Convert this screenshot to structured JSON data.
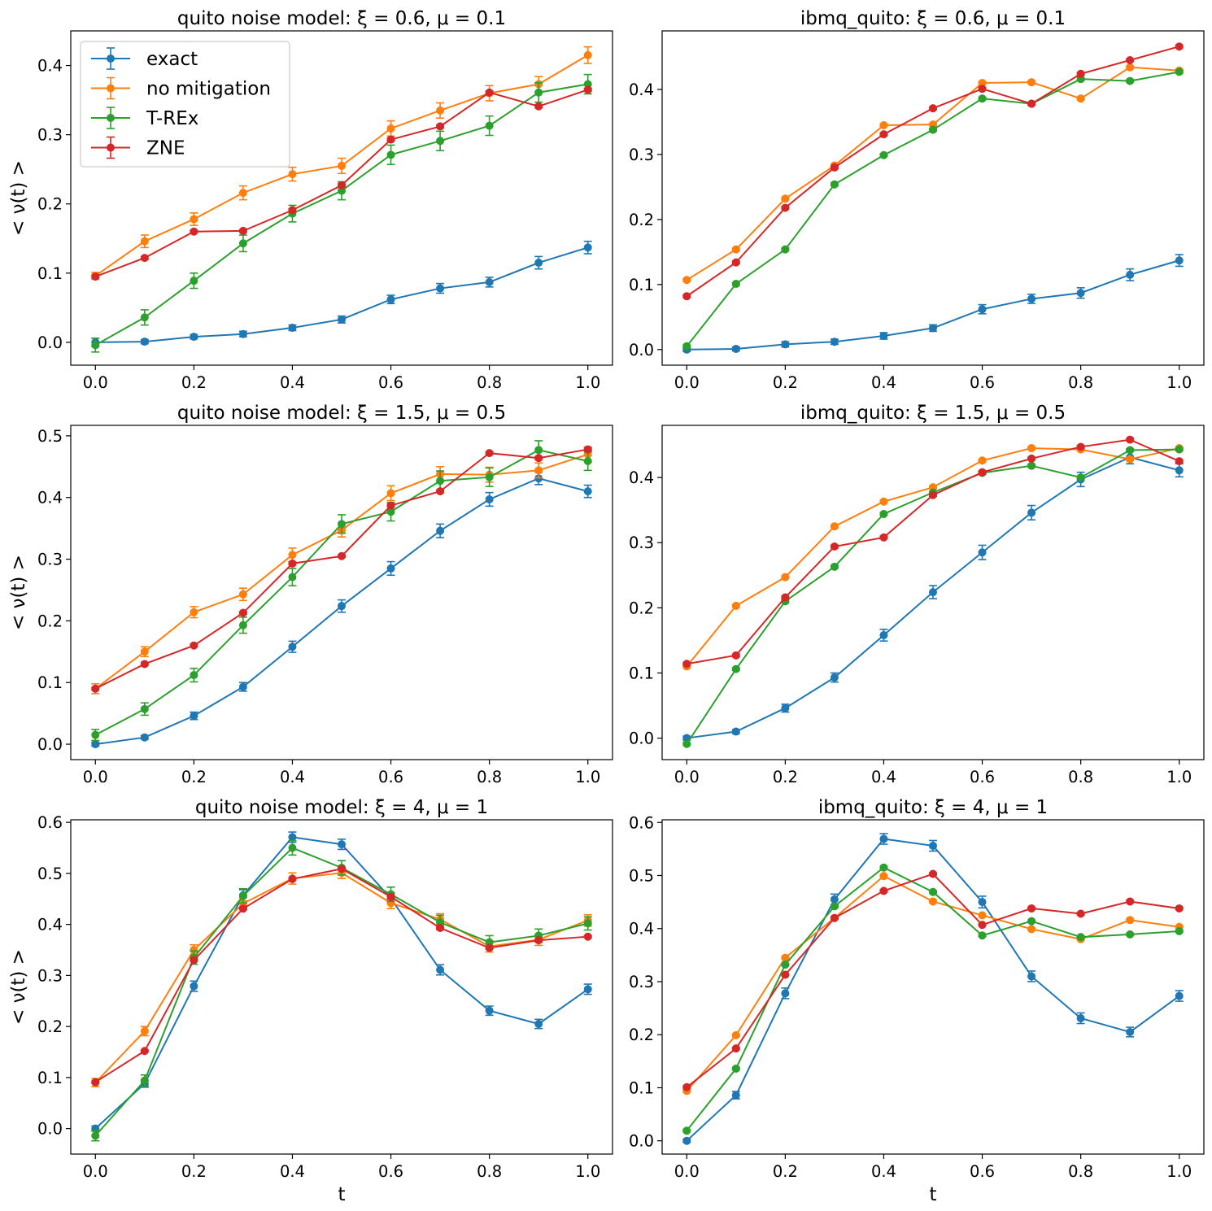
{
  "colors": {
    "exact": "#1f77b4",
    "no mitigation": "#ff7f0e",
    "T-REx": "#2ca02c",
    "ZNE": "#d62728"
  },
  "legend": [
    "exact",
    "no mitigation",
    "T-REx",
    "ZNE"
  ],
  "chart_data": [
    {
      "type": "line",
      "title": "quito noise model: ξ = 0.6, μ = 0.1",
      "xlabel": "",
      "ylabel": "< ν(t) >",
      "xlim": [
        -0.05,
        1.05
      ],
      "ylim": [
        -0.033,
        0.45
      ],
      "xticks": [
        "0.0",
        "0.2",
        "0.4",
        "0.6",
        "0.8",
        "1.0"
      ],
      "yticks": [
        "0.0",
        "0.1",
        "0.2",
        "0.3",
        "0.4"
      ],
      "x": [
        0.0,
        0.1,
        0.2,
        0.3,
        0.4,
        0.5,
        0.6,
        0.7,
        0.8,
        0.9,
        1.0
      ],
      "series": [
        {
          "name": "exact",
          "values": [
            0.0,
            0.001,
            0.008,
            0.012,
            0.021,
            0.033,
            0.062,
            0.078,
            0.087,
            0.115,
            0.137
          ],
          "errors": [
            0.006,
            0.003,
            0.003,
            0.004,
            0.004,
            0.005,
            0.006,
            0.007,
            0.007,
            0.009,
            0.009
          ]
        },
        {
          "name": "no mitigation",
          "values": [
            0.096,
            0.146,
            0.178,
            0.216,
            0.243,
            0.255,
            0.309,
            0.335,
            0.36,
            0.373,
            0.415
          ],
          "errors": [
            0.005,
            0.009,
            0.009,
            0.01,
            0.01,
            0.011,
            0.011,
            0.011,
            0.011,
            0.011,
            0.012
          ]
        },
        {
          "name": "T-REx",
          "values": [
            -0.004,
            0.036,
            0.089,
            0.143,
            0.186,
            0.219,
            0.271,
            0.291,
            0.313,
            0.361,
            0.373
          ],
          "errors": [
            0.01,
            0.011,
            0.011,
            0.012,
            0.012,
            0.013,
            0.014,
            0.014,
            0.014,
            0.014,
            0.014
          ]
        },
        {
          "name": "ZNE",
          "values": [
            0.095,
            0.122,
            0.16,
            0.161,
            0.191,
            0.227,
            0.293,
            0.312,
            0.361,
            0.341,
            0.365
          ],
          "errors": [
            0.002,
            0.002,
            0.002,
            0.002,
            0.002,
            0.002,
            0.002,
            0.002,
            0.002,
            0.002,
            0.002
          ]
        }
      ]
    },
    {
      "type": "line",
      "title": "ibmq_quito: ξ = 0.6, μ = 0.1",
      "xlabel": "",
      "ylabel": "",
      "xlim": [
        -0.05,
        1.05
      ],
      "ylim": [
        -0.024,
        0.49
      ],
      "xticks": [
        "0.0",
        "0.2",
        "0.4",
        "0.6",
        "0.8",
        "1.0"
      ],
      "yticks": [
        "0.0",
        "0.1",
        "0.2",
        "0.3",
        "0.4"
      ],
      "x": [
        0.0,
        0.1,
        0.2,
        0.3,
        0.4,
        0.5,
        0.6,
        0.7,
        0.8,
        0.9,
        1.0
      ],
      "series": [
        {
          "name": "exact",
          "values": [
            0.0,
            0.001,
            0.008,
            0.012,
            0.021,
            0.033,
            0.062,
            0.078,
            0.087,
            0.115,
            0.137
          ],
          "errors": [
            0.003,
            0.003,
            0.004,
            0.004,
            0.005,
            0.005,
            0.007,
            0.007,
            0.008,
            0.009,
            0.009
          ]
        },
        {
          "name": "no mitigation",
          "values": [
            0.107,
            0.154,
            0.232,
            0.283,
            0.345,
            0.346,
            0.41,
            0.411,
            0.386,
            0.434,
            0.429
          ],
          "errors": [
            0.002,
            0.002,
            0.002,
            0.002,
            0.002,
            0.002,
            0.002,
            0.002,
            0.002,
            0.002,
            0.002
          ]
        },
        {
          "name": "T-REx",
          "values": [
            0.005,
            0.101,
            0.154,
            0.254,
            0.299,
            0.338,
            0.386,
            0.378,
            0.416,
            0.413,
            0.427
          ],
          "errors": [
            0.002,
            0.002,
            0.002,
            0.002,
            0.002,
            0.002,
            0.002,
            0.002,
            0.002,
            0.002,
            0.002
          ]
        },
        {
          "name": "ZNE",
          "values": [
            0.082,
            0.134,
            0.218,
            0.28,
            0.331,
            0.371,
            0.401,
            0.378,
            0.424,
            0.445,
            0.466
          ],
          "errors": [
            0.002,
            0.002,
            0.002,
            0.002,
            0.002,
            0.002,
            0.002,
            0.002,
            0.002,
            0.002,
            0.002
          ]
        }
      ]
    },
    {
      "type": "line",
      "title": "quito noise model: ξ = 1.5, μ = 0.5",
      "xlabel": "",
      "ylabel": "< ν(t) >",
      "xlim": [
        -0.05,
        1.05
      ],
      "ylim": [
        -0.025,
        0.517
      ],
      "xticks": [
        "0.0",
        "0.2",
        "0.4",
        "0.6",
        "0.8",
        "1.0"
      ],
      "yticks": [
        "0.0",
        "0.1",
        "0.2",
        "0.3",
        "0.4",
        "0.5"
      ],
      "x": [
        0.0,
        0.1,
        0.2,
        0.3,
        0.4,
        0.5,
        0.6,
        0.7,
        0.8,
        0.9,
        1.0
      ],
      "series": [
        {
          "name": "exact",
          "values": [
            0.0,
            0.011,
            0.046,
            0.093,
            0.158,
            0.224,
            0.285,
            0.346,
            0.397,
            0.431,
            0.41
          ],
          "errors": [
            0.003,
            0.003,
            0.006,
            0.007,
            0.009,
            0.01,
            0.011,
            0.011,
            0.011,
            0.01,
            0.01
          ]
        },
        {
          "name": "no mitigation",
          "values": [
            0.09,
            0.15,
            0.214,
            0.243,
            0.307,
            0.347,
            0.407,
            0.438,
            0.437,
            0.444,
            0.47
          ],
          "errors": [
            0.008,
            0.008,
            0.009,
            0.01,
            0.011,
            0.011,
            0.012,
            0.012,
            0.012,
            0.012,
            0.012
          ]
        },
        {
          "name": "T-REx",
          "values": [
            0.015,
            0.057,
            0.112,
            0.193,
            0.271,
            0.357,
            0.377,
            0.427,
            0.433,
            0.477,
            0.459
          ],
          "errors": [
            0.009,
            0.01,
            0.011,
            0.013,
            0.014,
            0.015,
            0.015,
            0.016,
            0.015,
            0.015,
            0.015
          ]
        },
        {
          "name": "ZNE",
          "values": [
            0.09,
            0.13,
            0.16,
            0.213,
            0.293,
            0.305,
            0.387,
            0.41,
            0.472,
            0.464,
            0.478
          ],
          "errors": [
            0.002,
            0.002,
            0.002,
            0.002,
            0.002,
            0.002,
            0.002,
            0.002,
            0.002,
            0.002,
            0.002
          ]
        }
      ]
    },
    {
      "type": "line",
      "title": "ibmq_quito: ξ = 1.5, μ = 0.5",
      "xlabel": "",
      "ylabel": "",
      "xlim": [
        -0.05,
        1.05
      ],
      "ylim": [
        -0.033,
        0.48
      ],
      "xticks": [
        "0.0",
        "0.2",
        "0.4",
        "0.6",
        "0.8",
        "1.0"
      ],
      "yticks": [
        "0.0",
        "0.1",
        "0.2",
        "0.3",
        "0.4"
      ],
      "x": [
        0.0,
        0.1,
        0.2,
        0.3,
        0.4,
        0.5,
        0.6,
        0.7,
        0.8,
        0.9,
        1.0
      ],
      "series": [
        {
          "name": "exact",
          "values": [
            0.0,
            0.01,
            0.046,
            0.093,
            0.158,
            0.224,
            0.285,
            0.346,
            0.397,
            0.431,
            0.411
          ],
          "errors": [
            0.003,
            0.003,
            0.006,
            0.007,
            0.009,
            0.01,
            0.011,
            0.011,
            0.011,
            0.01,
            0.01
          ]
        },
        {
          "name": "no mitigation",
          "values": [
            0.11,
            0.203,
            0.247,
            0.325,
            0.363,
            0.385,
            0.426,
            0.445,
            0.443,
            0.428,
            0.445
          ],
          "errors": [
            0.002,
            0.002,
            0.002,
            0.002,
            0.002,
            0.002,
            0.002,
            0.002,
            0.002,
            0.002,
            0.002
          ]
        },
        {
          "name": "T-REx",
          "values": [
            -0.009,
            0.106,
            0.21,
            0.263,
            0.344,
            0.377,
            0.407,
            0.418,
            0.4,
            0.442,
            0.443
          ],
          "errors": [
            0.002,
            0.002,
            0.002,
            0.002,
            0.002,
            0.002,
            0.002,
            0.002,
            0.002,
            0.002,
            0.002
          ]
        },
        {
          "name": "ZNE",
          "values": [
            0.114,
            0.127,
            0.216,
            0.294,
            0.308,
            0.373,
            0.408,
            0.429,
            0.447,
            0.458,
            0.425
          ],
          "errors": [
            0.002,
            0.002,
            0.002,
            0.002,
            0.002,
            0.002,
            0.002,
            0.002,
            0.002,
            0.002,
            0.002
          ]
        }
      ]
    },
    {
      "type": "line",
      "title": "quito noise model: ξ = 4, μ = 1",
      "xlabel": "t",
      "ylabel": "< ν(t) >",
      "xlim": [
        -0.05,
        1.05
      ],
      "ylim": [
        -0.05,
        0.605
      ],
      "xticks": [
        "0.0",
        "0.2",
        "0.4",
        "0.6",
        "0.8",
        "1.0"
      ],
      "yticks": [
        "0.0",
        "0.1",
        "0.2",
        "0.3",
        "0.4",
        "0.5",
        "0.6"
      ],
      "x": [
        0.0,
        0.1,
        0.2,
        0.3,
        0.4,
        0.5,
        0.6,
        0.7,
        0.8,
        0.9,
        1.0
      ],
      "series": [
        {
          "name": "exact",
          "values": [
            0.0,
            0.088,
            0.279,
            0.457,
            0.571,
            0.557,
            0.451,
            0.311,
            0.231,
            0.205,
            0.273
          ],
          "errors": [
            0.005,
            0.007,
            0.01,
            0.011,
            0.01,
            0.01,
            0.011,
            0.01,
            0.009,
            0.009,
            0.01
          ]
        },
        {
          "name": "no mitigation",
          "values": [
            0.09,
            0.191,
            0.35,
            0.441,
            0.49,
            0.501,
            0.442,
            0.41,
            0.357,
            0.37,
            0.408
          ],
          "errors": [
            0.008,
            0.009,
            0.01,
            0.011,
            0.011,
            0.011,
            0.011,
            0.011,
            0.011,
            0.011,
            0.011
          ]
        },
        {
          "name": "T-REx",
          "values": [
            -0.014,
            0.094,
            0.335,
            0.456,
            0.55,
            0.511,
            0.459,
            0.404,
            0.365,
            0.378,
            0.402
          ],
          "errors": [
            0.01,
            0.011,
            0.013,
            0.014,
            0.014,
            0.014,
            0.014,
            0.014,
            0.013,
            0.013,
            0.013
          ]
        },
        {
          "name": "ZNE",
          "values": [
            0.091,
            0.152,
            0.33,
            0.431,
            0.489,
            0.509,
            0.454,
            0.393,
            0.354,
            0.369,
            0.376
          ],
          "errors": [
            0.002,
            0.002,
            0.002,
            0.002,
            0.002,
            0.002,
            0.002,
            0.002,
            0.002,
            0.002,
            0.002
          ]
        }
      ]
    },
    {
      "type": "line",
      "title": "ibmq_quito: ξ = 4, μ = 1",
      "xlabel": "t",
      "ylabel": "",
      "xlim": [
        -0.05,
        1.05
      ],
      "ylim": [
        -0.025,
        0.605
      ],
      "xticks": [
        "0.0",
        "0.2",
        "0.4",
        "0.6",
        "0.8",
        "1.0"
      ],
      "yticks": [
        "0.0",
        "0.1",
        "0.2",
        "0.3",
        "0.4",
        "0.5",
        "0.6"
      ],
      "x": [
        0.0,
        0.1,
        0.2,
        0.3,
        0.4,
        0.5,
        0.6,
        0.7,
        0.8,
        0.9,
        1.0
      ],
      "series": [
        {
          "name": "exact",
          "values": [
            0.0,
            0.086,
            0.278,
            0.455,
            0.569,
            0.556,
            0.45,
            0.31,
            0.231,
            0.205,
            0.273
          ],
          "errors": [
            0.003,
            0.007,
            0.01,
            0.01,
            0.01,
            0.01,
            0.011,
            0.01,
            0.01,
            0.009,
            0.01
          ]
        },
        {
          "name": "no mitigation",
          "values": [
            0.094,
            0.199,
            0.345,
            0.42,
            0.499,
            0.451,
            0.425,
            0.399,
            0.38,
            0.416,
            0.403
          ],
          "errors": [
            0.002,
            0.002,
            0.002,
            0.002,
            0.002,
            0.002,
            0.002,
            0.002,
            0.002,
            0.002,
            0.002
          ]
        },
        {
          "name": "T-REx",
          "values": [
            0.019,
            0.136,
            0.332,
            0.442,
            0.515,
            0.469,
            0.387,
            0.414,
            0.384,
            0.389,
            0.395
          ],
          "errors": [
            0.002,
            0.002,
            0.002,
            0.002,
            0.002,
            0.002,
            0.002,
            0.002,
            0.002,
            0.002,
            0.002
          ]
        },
        {
          "name": "ZNE",
          "values": [
            0.101,
            0.174,
            0.313,
            0.42,
            0.471,
            0.503,
            0.407,
            0.438,
            0.428,
            0.451,
            0.438
          ],
          "errors": [
            0.002,
            0.002,
            0.002,
            0.002,
            0.002,
            0.002,
            0.002,
            0.002,
            0.002,
            0.002,
            0.002
          ]
        }
      ]
    }
  ]
}
